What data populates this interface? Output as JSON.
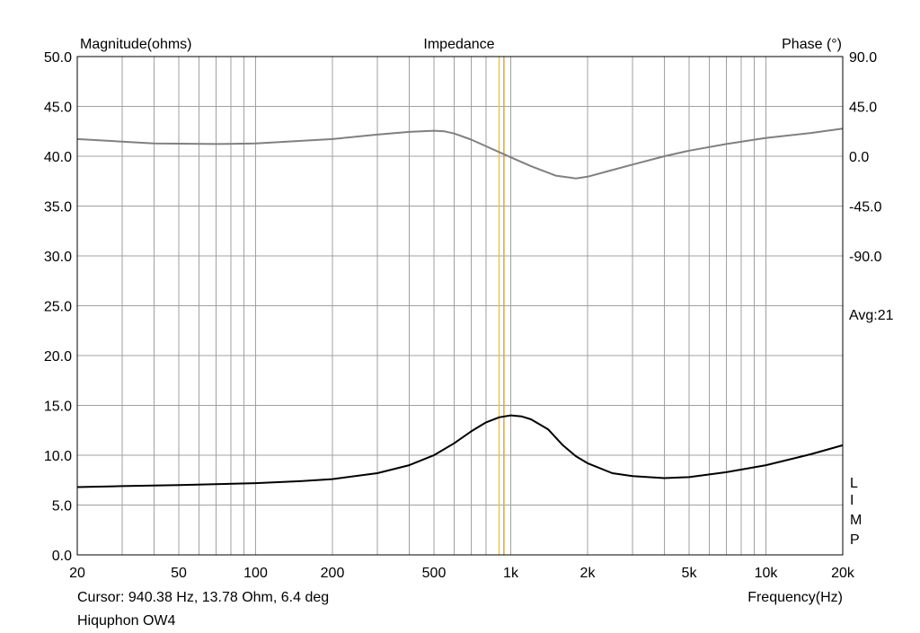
{
  "chart_data": {
    "type": "line",
    "title": "Impedance",
    "ylabel_left": "Magnitude(ohms)",
    "ylabel_right": "Phase (°)",
    "xlabel": "Frequency(Hz)",
    "x_scale": "log",
    "xlim": [
      20,
      20000
    ],
    "ylim_left": [
      0,
      50
    ],
    "ylim_right": [
      -90,
      90
    ],
    "x_ticks": [
      20,
      50,
      100,
      200,
      500,
      1000,
      2000,
      5000,
      10000,
      20000
    ],
    "x_tick_labels": [
      "20",
      "50",
      "100",
      "200",
      "500",
      "1k",
      "2k",
      "5k",
      "10k",
      "20k"
    ],
    "y_left_ticks": [
      0,
      5,
      10,
      15,
      20,
      25,
      30,
      35,
      40,
      45,
      50
    ],
    "y_left_tick_labels": [
      "0.0",
      "5.0",
      "10.0",
      "15.0",
      "20.0",
      "25.0",
      "30.0",
      "35.0",
      "40.0",
      "45.0",
      "50.0"
    ],
    "y_right_ticks": [
      90,
      45,
      0,
      -45,
      -90
    ],
    "y_right_tick_labels": [
      "90.0",
      "45.0",
      "0.0",
      "-45.0",
      "-90.0"
    ],
    "avg_label": "Avg:21",
    "legend_letters": [
      "L",
      "I",
      "M",
      "P"
    ],
    "grid": true,
    "cursor_hz": [
      900,
      940
    ],
    "cursor_colors": [
      "#e8c64a",
      "#d9a83a"
    ],
    "series": [
      {
        "axis": "left",
        "color": "#000000",
        "x": [
          20,
          30,
          50,
          100,
          150,
          200,
          300,
          400,
          500,
          600,
          700,
          800,
          900,
          1000,
          1100,
          1200,
          1400,
          1600,
          1800,
          2000,
          2500,
          3000,
          4000,
          5000,
          7000,
          10000,
          15000,
          20000
        ],
        "y": [
          6.8,
          6.9,
          7.0,
          7.2,
          7.4,
          7.6,
          8.2,
          9.0,
          10.0,
          11.2,
          12.4,
          13.3,
          13.8,
          14.0,
          13.9,
          13.6,
          12.6,
          11.0,
          9.9,
          9.2,
          8.2,
          7.9,
          7.7,
          7.8,
          8.3,
          9.0,
          10.1,
          11.0
        ]
      },
      {
        "axis": "right",
        "color": "#808080",
        "x": [
          20,
          40,
          70,
          100,
          200,
          300,
          400,
          500,
          550,
          600,
          700,
          800,
          1000,
          1200,
          1500,
          1800,
          2000,
          2500,
          3000,
          4000,
          5000,
          7000,
          10000,
          15000,
          20000
        ],
        "y": [
          15.5,
          11.5,
          11.0,
          11.5,
          15.5,
          19.5,
          22.0,
          23.0,
          22.5,
          20.5,
          15.0,
          9.0,
          -1.0,
          -9.0,
          -17.5,
          -20.0,
          -18.5,
          -12.5,
          -7.5,
          0.0,
          5.0,
          11.0,
          16.5,
          21.0,
          25.0
        ]
      }
    ]
  },
  "cursor_readout": "Cursor: 940.38 Hz, 13.78 Ohm, 6.4 deg",
  "trace_name": "Hiquphon OW4",
  "colors": {
    "grid": "#a0a0a0",
    "frame": "#000000"
  }
}
